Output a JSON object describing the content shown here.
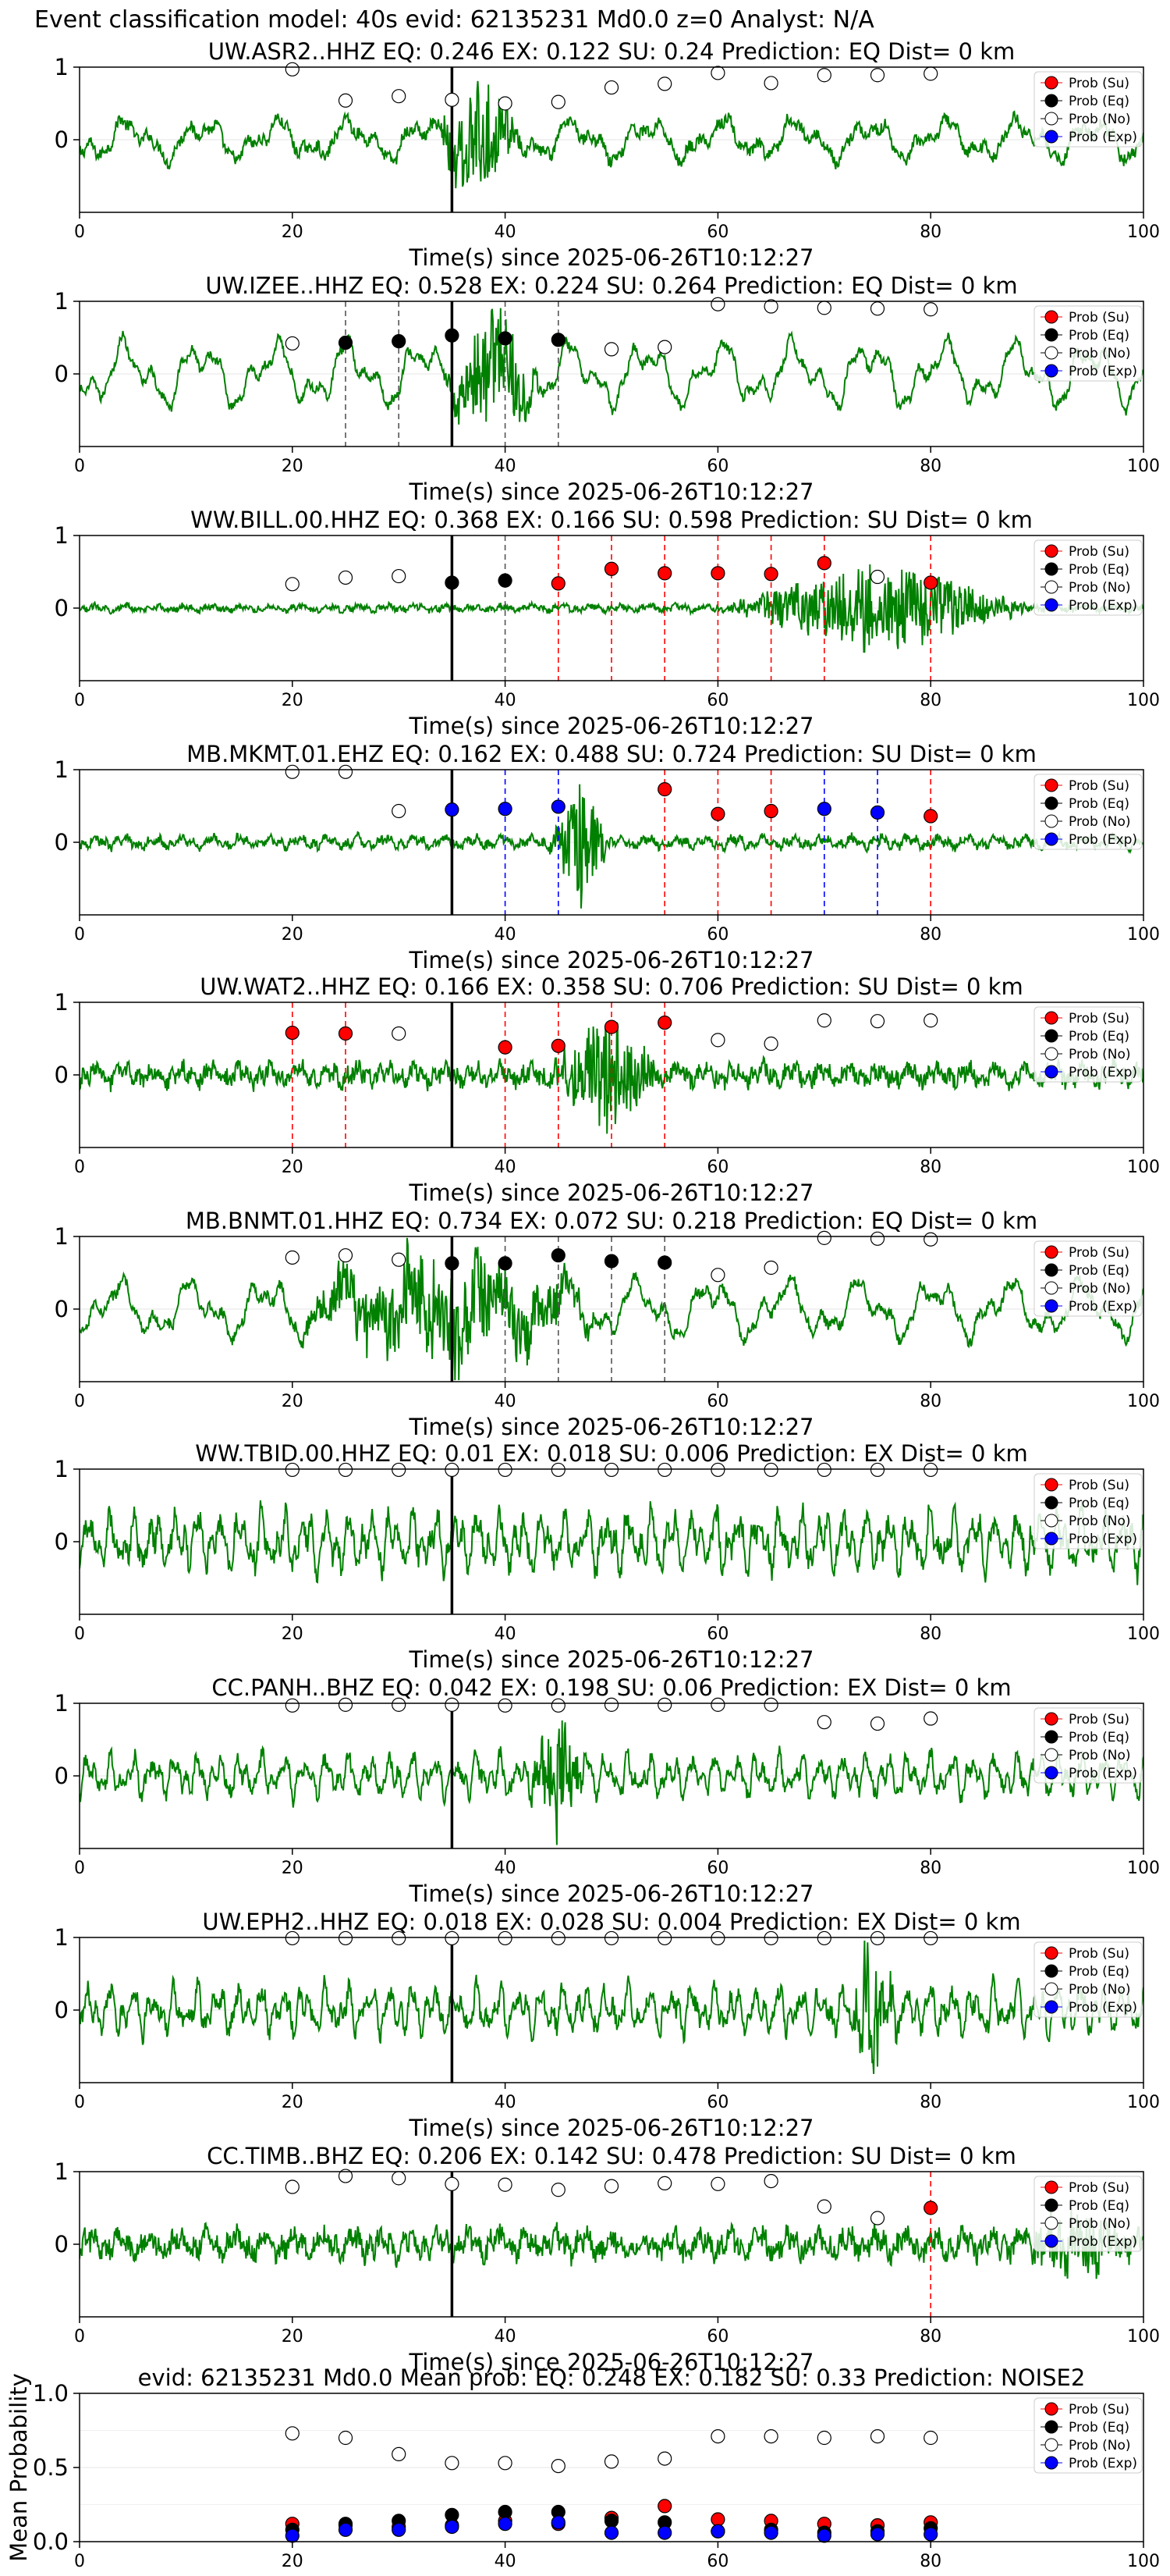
{
  "page": {
    "title": "Event classification model: 40s evid: 62135231 Md0.0 z=0 Analyst: N/A"
  },
  "legend_labels": [
    "Prob (Su)",
    "Prob (Eq)",
    "Prob (No)",
    "Prob (Exp)"
  ],
  "colors": {
    "su": "#ff0000",
    "eq": "#000000",
    "no": "#ffffff",
    "exp": "#0000ff",
    "waveform": "#008000",
    "grid": "#e6e6e6"
  },
  "chart_data": [
    {
      "type": "line",
      "title": "UW.ASR2..HHZ   EQ: 0.246  EX: 0.122  SU: 0.24   Prediction: EQ    Dist= 0 km",
      "xlabel": "Time(s) since 2025-06-26T10:12:27",
      "ylabel": "",
      "xlim": [
        0,
        100
      ],
      "ylim": [
        -1,
        1
      ],
      "xticks": [
        0,
        20,
        40,
        60,
        80,
        100
      ],
      "yticks": [
        0,
        1
      ],
      "waveform": {
        "amplitude": 0.35,
        "noise": 0.08,
        "burst_start": 33,
        "burst_end": 42,
        "burst_amp": 0.8,
        "style": "smooth"
      },
      "origin_time": 35,
      "window_centers": [
        20,
        25,
        30,
        35,
        40,
        45,
        50,
        55,
        60,
        65,
        70,
        75,
        80
      ],
      "probabilities": {
        "no": [
          0.97,
          0.54,
          0.6,
          0.55,
          0.5,
          0.52,
          0.72,
          0.77,
          0.92,
          0.78,
          0.89,
          0.89,
          0.91
        ]
      },
      "marker_lines": []
    },
    {
      "type": "line",
      "title": "UW.IZEE..HHZ   EQ: 0.528  EX: 0.224  SU: 0.264   Prediction: EQ    Dist= 0 km",
      "xlabel": "Time(s) since 2025-06-26T10:12:27",
      "ylabel": "",
      "xlim": [
        0,
        100
      ],
      "ylim": [
        -1,
        1
      ],
      "xticks": [
        0,
        20,
        40,
        60,
        80,
        100
      ],
      "yticks": [
        0,
        1
      ],
      "waveform": {
        "amplitude": 0.55,
        "noise": 0.06,
        "burst_start": 34,
        "burst_end": 44,
        "burst_amp": 0.85,
        "style": "smooth"
      },
      "origin_time": 35,
      "window_centers": [
        20,
        25,
        30,
        35,
        40,
        45,
        50,
        55,
        60,
        65,
        70,
        75,
        80
      ],
      "probabilities": {
        "no": [
          0.42,
          null,
          null,
          null,
          null,
          null,
          0.34,
          0.37,
          0.96,
          0.93,
          0.91,
          0.9,
          0.89
        ],
        "eq": [
          null,
          0.43,
          0.45,
          0.53,
          0.49,
          0.47,
          null,
          null,
          null,
          null,
          null,
          null,
          null
        ]
      },
      "marker_lines": [
        {
          "x": 25,
          "class": "eq"
        },
        {
          "x": 30,
          "class": "eq"
        },
        {
          "x": 40,
          "class": "eq"
        },
        {
          "x": 45,
          "class": "eq"
        }
      ]
    },
    {
      "type": "line",
      "title": "WW.BILL.00.HHZ   EQ: 0.368  EX: 0.166  SU: 0.598   Prediction: SU    Dist= 0 km",
      "xlabel": "Time(s) since 2025-06-26T10:12:27",
      "ylabel": "",
      "xlim": [
        0,
        100
      ],
      "ylim": [
        -1,
        1
      ],
      "xticks": [
        0,
        20,
        40,
        60,
        80,
        100
      ],
      "yticks": [
        0,
        1
      ],
      "waveform": {
        "amplitude": 0.06,
        "noise": 0.04,
        "burst_start": 60,
        "burst_end": 90,
        "burst_amp": 0.65,
        "style": "noisy"
      },
      "origin_time": 35,
      "window_centers": [
        20,
        25,
        30,
        35,
        40,
        45,
        50,
        55,
        60,
        65,
        70,
        75,
        80
      ],
      "probabilities": {
        "no": [
          0.33,
          0.42,
          0.44,
          null,
          null,
          null,
          null,
          null,
          null,
          null,
          null,
          0.43,
          null
        ],
        "eq": [
          null,
          null,
          null,
          0.35,
          0.38,
          null,
          null,
          null,
          null,
          null,
          null,
          null,
          null
        ],
        "su": [
          null,
          null,
          null,
          null,
          null,
          0.34,
          0.54,
          0.48,
          0.48,
          0.47,
          0.62,
          null,
          0.35
        ]
      },
      "marker_lines": [
        {
          "x": 40,
          "class": "eq"
        },
        {
          "x": 45,
          "class": "su"
        },
        {
          "x": 50,
          "class": "su"
        },
        {
          "x": 55,
          "class": "su"
        },
        {
          "x": 60,
          "class": "su"
        },
        {
          "x": 65,
          "class": "su"
        },
        {
          "x": 70,
          "class": "su"
        },
        {
          "x": 80,
          "class": "su"
        }
      ]
    },
    {
      "type": "line",
      "title": "MB.MKMT.01.EHZ   EQ: 0.162  EX: 0.488  SU: 0.724   Prediction: SU    Dist= 0 km",
      "xlabel": "Time(s) since 2025-06-26T10:12:27",
      "ylabel": "",
      "xlim": [
        0,
        100
      ],
      "ylim": [
        -1,
        1
      ],
      "xticks": [
        0,
        20,
        40,
        60,
        80,
        100
      ],
      "yticks": [
        0,
        1
      ],
      "waveform": {
        "amplitude": 0.12,
        "noise": 0.06,
        "burst_start": 44,
        "burst_end": 50,
        "burst_amp": 0.9,
        "style": "noisy"
      },
      "origin_time": 35,
      "window_centers": [
        20,
        25,
        30,
        35,
        40,
        45,
        50,
        55,
        60,
        65,
        70,
        75,
        80
      ],
      "probabilities": {
        "no": [
          0.97,
          0.97,
          0.43,
          null,
          null,
          null,
          null,
          null,
          null,
          null,
          null,
          null,
          null
        ],
        "exp": [
          null,
          null,
          null,
          0.45,
          0.46,
          0.49,
          null,
          null,
          null,
          null,
          0.46,
          0.41,
          null
        ],
        "su": [
          null,
          null,
          null,
          null,
          null,
          null,
          null,
          0.73,
          0.39,
          0.43,
          null,
          null,
          0.36
        ]
      },
      "marker_lines": [
        {
          "x": 40,
          "class": "exp"
        },
        {
          "x": 45,
          "class": "exp"
        },
        {
          "x": 55,
          "class": "su"
        },
        {
          "x": 60,
          "class": "su"
        },
        {
          "x": 65,
          "class": "su"
        },
        {
          "x": 70,
          "class": "exp"
        },
        {
          "x": 75,
          "class": "exp"
        },
        {
          "x": 80,
          "class": "su"
        }
      ]
    },
    {
      "type": "line",
      "title": "UW.WAT2..HHZ   EQ: 0.166  EX: 0.358  SU: 0.706   Prediction: SU    Dist= 0 km",
      "xlabel": "Time(s) since 2025-06-26T10:12:27",
      "ylabel": "",
      "xlim": [
        0,
        100
      ],
      "ylim": [
        -1,
        1
      ],
      "xticks": [
        0,
        20,
        40,
        60,
        80,
        100
      ],
      "yticks": [
        0,
        1
      ],
      "waveform": {
        "amplitude": 0.18,
        "noise": 0.12,
        "burst_start": 44,
        "burst_end": 55,
        "burst_amp": 0.8,
        "style": "noisy"
      },
      "origin_time": 35,
      "window_centers": [
        20,
        25,
        30,
        35,
        40,
        45,
        50,
        55,
        60,
        65,
        70,
        75,
        80
      ],
      "probabilities": {
        "su": [
          0.58,
          0.57,
          null,
          null,
          0.38,
          0.4,
          0.66,
          0.72,
          null,
          null,
          null,
          null,
          null
        ],
        "no": [
          null,
          null,
          0.57,
          null,
          null,
          null,
          null,
          null,
          0.48,
          0.43,
          0.75,
          0.74,
          0.75
        ]
      },
      "marker_lines": [
        {
          "x": 20,
          "class": "su"
        },
        {
          "x": 25,
          "class": "su"
        },
        {
          "x": 40,
          "class": "su"
        },
        {
          "x": 45,
          "class": "su"
        },
        {
          "x": 50,
          "class": "su"
        },
        {
          "x": 55,
          "class": "su"
        }
      ]
    },
    {
      "type": "line",
      "title": "MB.BNMT.01.HHZ   EQ: 0.734  EX: 0.072  SU: 0.218   Prediction: EQ    Dist= 0 km",
      "xlabel": "Time(s) since 2025-06-26T10:12:27",
      "ylabel": "",
      "xlim": [
        0,
        100
      ],
      "ylim": [
        -1,
        1
      ],
      "xticks": [
        0,
        20,
        40,
        60,
        80,
        100
      ],
      "yticks": [
        0,
        1
      ],
      "waveform": {
        "amplitude": 0.5,
        "noise": 0.07,
        "burst_start": 18,
        "burst_end": 50,
        "burst_amp": 0.75,
        "style": "smooth"
      },
      "origin_time": 35,
      "window_centers": [
        20,
        25,
        30,
        35,
        40,
        45,
        50,
        55,
        60,
        65,
        70,
        75,
        80
      ],
      "probabilities": {
        "no": [
          0.71,
          0.74,
          0.68,
          null,
          null,
          null,
          null,
          null,
          0.47,
          0.57,
          0.98,
          0.97,
          0.96
        ],
        "eq": [
          null,
          null,
          null,
          0.63,
          0.63,
          0.74,
          0.66,
          0.64,
          null,
          null,
          null,
          null,
          null
        ]
      },
      "marker_lines": [
        {
          "x": 40,
          "class": "eq"
        },
        {
          "x": 45,
          "class": "eq"
        },
        {
          "x": 50,
          "class": "eq"
        },
        {
          "x": 55,
          "class": "eq"
        }
      ]
    },
    {
      "type": "line",
      "title": "WW.TBID.00.HHZ   EQ: 0.01  EX: 0.018  SU: 0.006   Prediction: EX    Dist= 0 km",
      "xlabel": "Time(s) since 2025-06-26T10:12:27",
      "ylabel": "",
      "xlim": [
        0,
        100
      ],
      "ylim": [
        -1,
        1
      ],
      "xticks": [
        0,
        20,
        40,
        60,
        80,
        100
      ],
      "yticks": [
        0,
        1
      ],
      "waveform": {
        "amplitude": 0.5,
        "noise": 0.15,
        "burst_start": 0,
        "burst_end": 0,
        "burst_amp": 0,
        "style": "dense"
      },
      "origin_time": 35,
      "window_centers": [
        20,
        25,
        30,
        35,
        40,
        45,
        50,
        55,
        60,
        65,
        70,
        75,
        80
      ],
      "probabilities": {
        "no": [
          0.99,
          0.99,
          0.99,
          0.99,
          0.99,
          0.99,
          0.99,
          0.99,
          0.99,
          0.99,
          0.99,
          0.99,
          0.99
        ]
      },
      "marker_lines": []
    },
    {
      "type": "line",
      "title": "CC.PANH..BHZ   EQ: 0.042  EX: 0.198  SU: 0.06   Prediction: EX    Dist= 0 km",
      "xlabel": "Time(s) since 2025-06-26T10:12:27",
      "ylabel": "",
      "xlim": [
        0,
        100
      ],
      "ylim": [
        -1,
        1
      ],
      "xticks": [
        0,
        20,
        40,
        60,
        80,
        100
      ],
      "yticks": [
        0,
        1
      ],
      "waveform": {
        "amplitude": 0.35,
        "noise": 0.1,
        "burst_start": 42,
        "burst_end": 48,
        "burst_amp": 0.8,
        "style": "dense"
      },
      "origin_time": 35,
      "window_centers": [
        20,
        25,
        30,
        35,
        40,
        45,
        50,
        55,
        60,
        65,
        70,
        75,
        80
      ],
      "probabilities": {
        "no": [
          0.97,
          0.98,
          0.98,
          0.98,
          0.97,
          0.97,
          0.98,
          0.98,
          0.98,
          0.98,
          0.74,
          0.72,
          0.79
        ]
      },
      "marker_lines": []
    },
    {
      "type": "line",
      "title": "UW.EPH2..HHZ   EQ: 0.018  EX: 0.028  SU: 0.004   Prediction: EX    Dist= 0 km",
      "xlabel": "Time(s) since 2025-06-26T10:12:27",
      "ylabel": "",
      "xlim": [
        0,
        100
      ],
      "ylim": [
        -1,
        1
      ],
      "xticks": [
        0,
        20,
        40,
        60,
        80,
        100
      ],
      "yticks": [
        0,
        1
      ],
      "waveform": {
        "amplitude": 0.4,
        "noise": 0.12,
        "burst_start": 72,
        "burst_end": 77,
        "burst_amp": 0.85,
        "style": "dense"
      },
      "origin_time": 35,
      "window_centers": [
        20,
        25,
        30,
        35,
        40,
        45,
        50,
        55,
        60,
        65,
        70,
        75,
        80
      ],
      "probabilities": {
        "no": [
          0.99,
          0.99,
          0.99,
          0.99,
          0.99,
          0.99,
          0.99,
          0.99,
          0.99,
          0.99,
          0.99,
          0.99,
          0.99
        ]
      },
      "marker_lines": []
    },
    {
      "type": "line",
      "title": "CC.TIMB..BHZ   EQ: 0.206  EX: 0.142  SU: 0.478   Prediction: SU    Dist= 0 km",
      "xlabel": "Time(s) since 2025-06-26T10:12:27",
      "ylabel": "",
      "xlim": [
        0,
        100
      ],
      "ylim": [
        -1,
        1
      ],
      "xticks": [
        0,
        20,
        40,
        60,
        80,
        100
      ],
      "yticks": [
        0,
        1
      ],
      "waveform": {
        "amplitude": 0.25,
        "noise": 0.15,
        "burst_start": 88,
        "burst_end": 100,
        "burst_amp": 0.45,
        "style": "noisy"
      },
      "origin_time": 35,
      "window_centers": [
        20,
        25,
        30,
        35,
        40,
        45,
        50,
        55,
        60,
        65,
        70,
        75,
        80
      ],
      "probabilities": {
        "no": [
          0.79,
          0.94,
          0.91,
          0.83,
          0.82,
          0.75,
          0.8,
          0.84,
          0.83,
          0.87,
          0.52,
          0.36,
          null
        ],
        "su": [
          null,
          null,
          null,
          null,
          null,
          null,
          null,
          null,
          null,
          null,
          null,
          null,
          0.5
        ]
      },
      "marker_lines": [
        {
          "x": 80,
          "class": "su"
        }
      ]
    },
    {
      "type": "scatter",
      "title": "evid: 62135231  Md0.0   Mean prob:   EQ: 0.248  EX: 0.182  SU: 0.33   Prediction: NOISE2",
      "xlabel": "",
      "ylabel": "Mean Probability",
      "xlim": [
        0,
        100
      ],
      "ylim": [
        0,
        1
      ],
      "xticks": [
        0,
        20,
        40,
        60,
        80,
        100
      ],
      "yticks": [
        0.0,
        0.5,
        1.0
      ],
      "ytick_labels": [
        "0.0",
        "0.5",
        "1.0"
      ],
      "window_centers": [
        20,
        25,
        30,
        35,
        40,
        45,
        50,
        55,
        60,
        65,
        70,
        75,
        80
      ],
      "probabilities": {
        "no": [
          0.73,
          0.7,
          0.59,
          0.53,
          0.53,
          0.51,
          0.54,
          0.56,
          0.71,
          0.71,
          0.7,
          0.71,
          0.7
        ],
        "su": [
          0.12,
          0.11,
          0.1,
          0.11,
          0.14,
          0.12,
          0.16,
          0.24,
          0.15,
          0.14,
          0.12,
          0.11,
          0.13
        ],
        "eq": [
          0.08,
          0.12,
          0.14,
          0.18,
          0.2,
          0.2,
          0.14,
          0.13,
          0.07,
          0.08,
          0.06,
          0.07,
          0.09
        ],
        "exp": [
          0.04,
          0.08,
          0.08,
          0.1,
          0.12,
          0.13,
          0.06,
          0.06,
          0.07,
          0.06,
          0.04,
          0.05,
          0.05
        ]
      },
      "marker_lines": []
    }
  ]
}
